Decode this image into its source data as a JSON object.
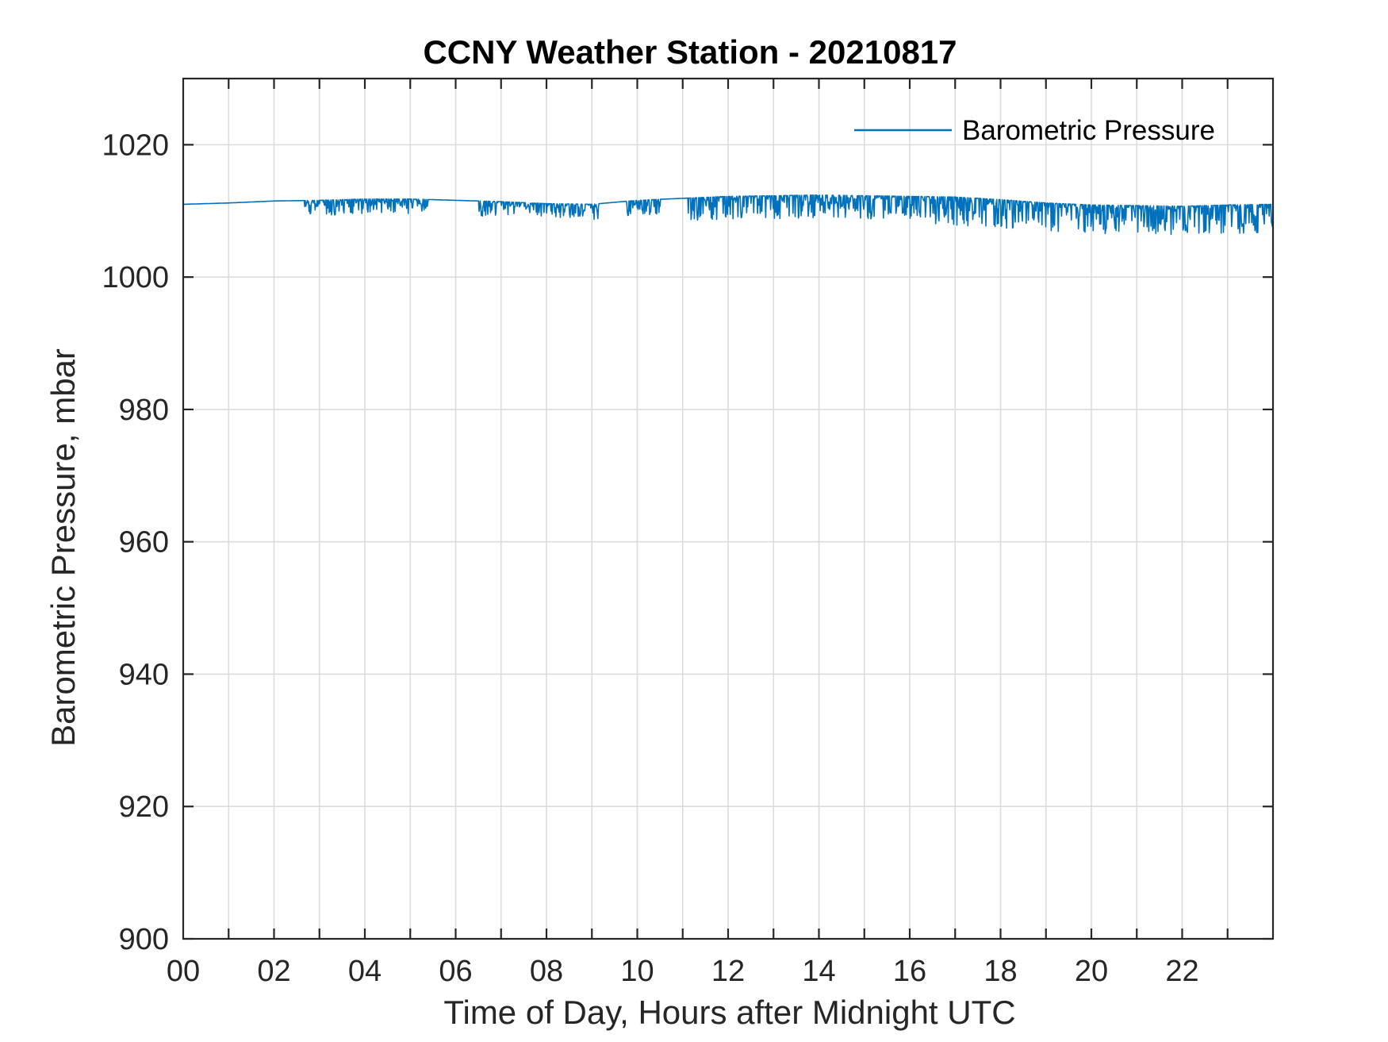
{
  "chart_data": {
    "type": "line",
    "title": "CCNY Weather Station - 20210817",
    "xlabel": "Time of Day, Hours after Midnight UTC",
    "ylabel": "Barometric Pressure, mbar",
    "xlim": [
      0,
      24
    ],
    "ylim": [
      900,
      1030
    ],
    "x_ticks": [
      0,
      2,
      4,
      6,
      8,
      10,
      12,
      14,
      16,
      18,
      20,
      22
    ],
    "x_tick_labels": [
      "00",
      "02",
      "04",
      "06",
      "08",
      "10",
      "12",
      "14",
      "16",
      "18",
      "20",
      "22"
    ],
    "x_grid_step": 1,
    "y_ticks": [
      900,
      920,
      940,
      960,
      980,
      1000,
      1020
    ],
    "y_tick_labels": [
      "900",
      "920",
      "940",
      "960",
      "980",
      "1000",
      "1020"
    ],
    "grid": true,
    "legend": {
      "position": "top-right",
      "entries": [
        "Barometric Pressure"
      ]
    },
    "series": [
      {
        "name": "Barometric Pressure",
        "color": "#0072BD",
        "baseline": {
          "x": [
            0,
            1,
            2,
            3,
            4,
            5,
            6,
            7,
            8,
            9,
            10,
            11,
            12,
            13,
            14,
            15,
            16,
            17,
            18,
            19,
            20,
            21,
            22,
            23,
            24
          ],
          "y": [
            1011.0,
            1011.2,
            1011.5,
            1011.6,
            1011.8,
            1011.8,
            1011.6,
            1011.4,
            1011.1,
            1011.0,
            1011.6,
            1011.9,
            1012.2,
            1012.3,
            1012.4,
            1012.3,
            1012.2,
            1012.1,
            1011.7,
            1011.2,
            1010.9,
            1010.8,
            1010.7,
            1010.9,
            1011.0
          ]
        },
        "dip_segments": [
          {
            "x_start": 2.65,
            "x_end": 5.4,
            "max_depth": 2.3
          },
          {
            "x_start": 6.5,
            "x_end": 9.15,
            "max_depth": 2.3
          },
          {
            "x_start": 9.75,
            "x_end": 10.5,
            "max_depth": 2.3
          },
          {
            "x_start": 11.1,
            "x_end": 16.5,
            "max_depth": 3.5
          },
          {
            "x_start": 16.5,
            "x_end": 24.0,
            "max_depth": 4.3
          }
        ]
      }
    ]
  }
}
